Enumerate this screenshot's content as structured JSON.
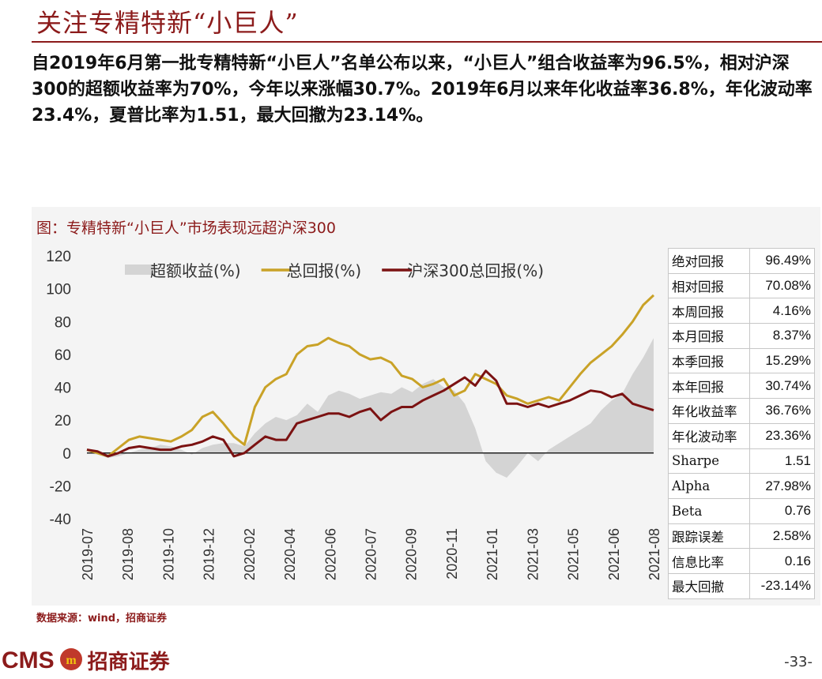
{
  "page": {
    "title": "关注专精特新“小巨人”",
    "summary": "自2019年6月第一批专精特新“小巨人”名单公布以来，“小巨人”组合收益率为96.5%，相对沪深300的超额收益率为70%，今年以来涨幅30.7%。2019年6月以来年化收益率36.8%，年化波动率23.4%，夏普比率为1.51，最大回撤为23.14%。",
    "source": "数据来源：wind，招商证券",
    "page_number": "-33-",
    "logo_text_en": "CMS",
    "logo_text_cn": "招商证券",
    "logo_emblem_text": "m"
  },
  "colors": {
    "accent": "#8c1b1b",
    "excess": "#d4d4d4",
    "portfolio": "#c9a227",
    "hs300": "#7b1212",
    "emblem": "#c0392b"
  },
  "stats_table": [
    {
      "label": "绝对回报",
      "value": "96.49%"
    },
    {
      "label": "相对回报",
      "value": "70.08%"
    },
    {
      "label": "本周回报",
      "value": "4.16%"
    },
    {
      "label": "本月回报",
      "value": "8.37%"
    },
    {
      "label": "本季回报",
      "value": "15.29%"
    },
    {
      "label": "本年回报",
      "value": "30.74%"
    },
    {
      "label": "年化收益率",
      "value": "36.76%"
    },
    {
      "label": "年化波动率",
      "value": "23.36%"
    },
    {
      "label": "Sharpe",
      "value": "1.51"
    },
    {
      "label": "Alpha",
      "value": "27.98%"
    },
    {
      "label": "Beta",
      "value": "0.76"
    },
    {
      "label": "跟踪误差",
      "value": "2.58%"
    },
    {
      "label": "信息比率",
      "value": "0.16"
    },
    {
      "label": "最大回撤",
      "value": "-23.14%"
    }
  ],
  "chart_data": {
    "type": "line",
    "title": "图：专精特新“小巨人”市场表现远超沪深300",
    "ylim": [
      -40,
      120
    ],
    "yticks": [
      -40,
      -20,
      0,
      20,
      40,
      60,
      80,
      100,
      120
    ],
    "x_tick_labels": [
      "2019-07",
      "2019-08",
      "2019-10",
      "2019-12",
      "2020-02",
      "2020-04",
      "2020-06",
      "2020-07",
      "2020-09",
      "2020-11",
      "2021-01",
      "2021-03",
      "2021-05",
      "2021-06",
      "2021-08"
    ],
    "legend_position": "top",
    "series": [
      {
        "name": "超额收益(%)",
        "kind": "area",
        "values": [
          0,
          -1,
          -3,
          -2,
          0,
          2,
          3,
          5,
          4,
          2,
          -1,
          3,
          5,
          6,
          6,
          4,
          12,
          18,
          22,
          20,
          23,
          30,
          25,
          35,
          38,
          36,
          33,
          35,
          37,
          36,
          40,
          37,
          42,
          45,
          40,
          38,
          30,
          15,
          -5,
          -12,
          -15,
          -8,
          0,
          -5,
          2,
          6,
          10,
          14,
          18,
          26,
          32,
          36,
          48,
          58,
          70
        ]
      },
      {
        "name": "总回报(%)",
        "kind": "line",
        "values": [
          2,
          0,
          -2,
          3,
          8,
          10,
          9,
          8,
          7,
          10,
          14,
          22,
          25,
          18,
          10,
          5,
          28,
          40,
          45,
          48,
          60,
          65,
          66,
          70,
          67,
          65,
          60,
          57,
          58,
          55,
          47,
          45,
          40,
          42,
          45,
          35,
          38,
          48,
          45,
          42,
          35,
          33,
          30,
          32,
          34,
          32,
          40,
          48,
          55,
          60,
          65,
          72,
          80,
          90,
          96
        ]
      },
      {
        "name": "沪深300总回报(%)",
        "kind": "line",
        "values": [
          2,
          1,
          -2,
          0,
          3,
          4,
          3,
          2,
          2,
          4,
          5,
          7,
          10,
          8,
          -2,
          0,
          5,
          10,
          8,
          8,
          18,
          20,
          22,
          24,
          24,
          22,
          25,
          27,
          20,
          25,
          28,
          28,
          32,
          35,
          38,
          42,
          46,
          41,
          50,
          44,
          30,
          30,
          28,
          30,
          28,
          30,
          32,
          35,
          38,
          37,
          34,
          36,
          30,
          28,
          26
        ]
      }
    ]
  }
}
